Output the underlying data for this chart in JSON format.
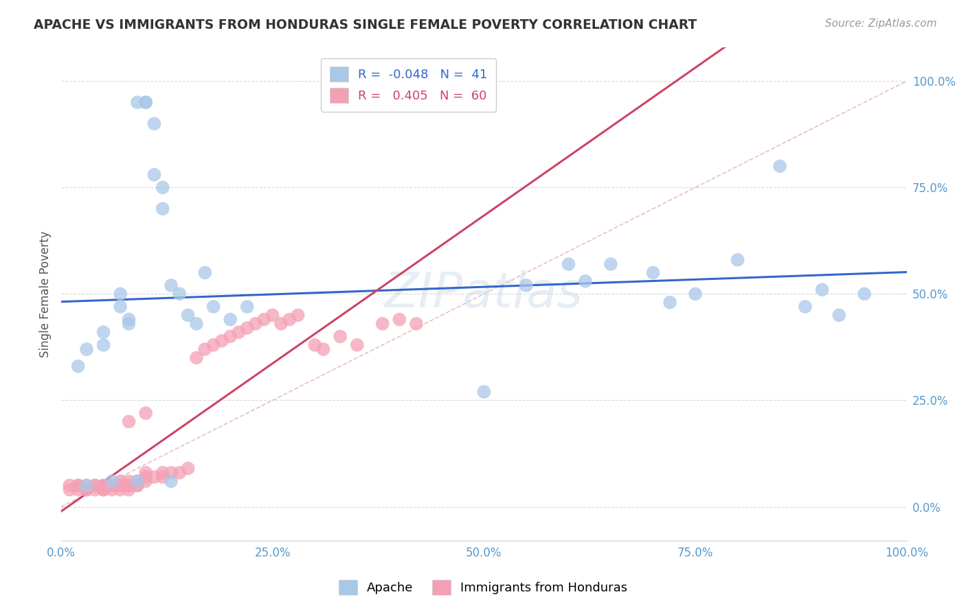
{
  "title": "APACHE VS IMMIGRANTS FROM HONDURAS SINGLE FEMALE POVERTY CORRELATION CHART",
  "source": "Source: ZipAtlas.com",
  "ylabel": "Single Female Poverty",
  "watermark": "ZIPatlas",
  "apache_R": -0.048,
  "apache_N": 41,
  "honduras_R": 0.405,
  "honduras_N": 60,
  "apache_color": "#a8c8e8",
  "honduras_color": "#f4a0b4",
  "apache_line_color": "#3366cc",
  "honduras_line_color": "#cc4466",
  "diagonal_color": "#ddb0b8",
  "grid_color": "#d8d8d8",
  "tick_color": "#5599cc",
  "title_color": "#333333",
  "source_color": "#999999",
  "watermark_color": "#c8d8e8",
  "apache_x": [
    0.02,
    0.03,
    0.05,
    0.05,
    0.07,
    0.07,
    0.08,
    0.08,
    0.09,
    0.1,
    0.1,
    0.11,
    0.11,
    0.12,
    0.12,
    0.13,
    0.14,
    0.15,
    0.16,
    0.17,
    0.18,
    0.2,
    0.22,
    0.5,
    0.55,
    0.6,
    0.62,
    0.65,
    0.7,
    0.72,
    0.75,
    0.8,
    0.85,
    0.88,
    0.9,
    0.92,
    0.95,
    0.03,
    0.06,
    0.09,
    0.13
  ],
  "apache_y": [
    0.33,
    0.37,
    0.41,
    0.38,
    0.5,
    0.47,
    0.43,
    0.44,
    0.95,
    0.95,
    0.95,
    0.9,
    0.78,
    0.75,
    0.7,
    0.52,
    0.5,
    0.45,
    0.43,
    0.55,
    0.47,
    0.44,
    0.47,
    0.27,
    0.52,
    0.57,
    0.53,
    0.57,
    0.55,
    0.48,
    0.5,
    0.58,
    0.8,
    0.47,
    0.51,
    0.45,
    0.5,
    0.05,
    0.06,
    0.06,
    0.06
  ],
  "honduras_x": [
    0.01,
    0.01,
    0.02,
    0.02,
    0.02,
    0.03,
    0.03,
    0.03,
    0.04,
    0.04,
    0.04,
    0.05,
    0.05,
    0.05,
    0.05,
    0.06,
    0.06,
    0.06,
    0.07,
    0.07,
    0.07,
    0.07,
    0.08,
    0.08,
    0.08,
    0.08,
    0.09,
    0.09,
    0.09,
    0.1,
    0.1,
    0.1,
    0.11,
    0.12,
    0.12,
    0.13,
    0.14,
    0.15,
    0.16,
    0.17,
    0.18,
    0.19,
    0.2,
    0.21,
    0.22,
    0.23,
    0.24,
    0.25,
    0.26,
    0.27,
    0.28,
    0.3,
    0.31,
    0.33,
    0.35,
    0.38,
    0.4,
    0.42,
    0.08,
    0.1
  ],
  "honduras_y": [
    0.04,
    0.05,
    0.04,
    0.05,
    0.05,
    0.04,
    0.04,
    0.05,
    0.04,
    0.05,
    0.05,
    0.04,
    0.04,
    0.05,
    0.05,
    0.04,
    0.05,
    0.05,
    0.04,
    0.05,
    0.05,
    0.06,
    0.04,
    0.05,
    0.05,
    0.06,
    0.05,
    0.05,
    0.06,
    0.06,
    0.07,
    0.08,
    0.07,
    0.07,
    0.08,
    0.08,
    0.08,
    0.09,
    0.35,
    0.37,
    0.38,
    0.39,
    0.4,
    0.41,
    0.42,
    0.43,
    0.44,
    0.45,
    0.43,
    0.44,
    0.45,
    0.38,
    0.37,
    0.4,
    0.38,
    0.43,
    0.44,
    0.43,
    0.2,
    0.22
  ],
  "xlim": [
    0.0,
    1.0
  ],
  "ylim": [
    -0.08,
    1.08
  ],
  "xtick_pos": [
    0.0,
    0.25,
    0.5,
    0.75,
    1.0
  ],
  "xtick_labels": [
    "0.0%",
    "25.0%",
    "50.0%",
    "75.0%",
    "100.0%"
  ],
  "ytick_pos": [
    0.0,
    0.25,
    0.5,
    0.75,
    1.0
  ],
  "ytick_labels": [
    "0.0%",
    "25.0%",
    "50.0%",
    "75.0%",
    "100.0%"
  ]
}
